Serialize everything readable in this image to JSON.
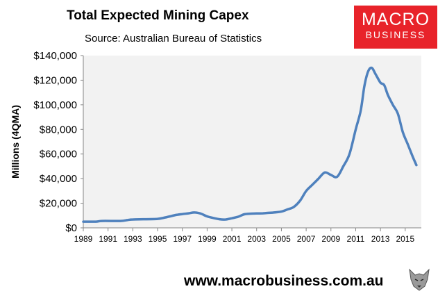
{
  "header": {
    "title": "Total Expected Mining Capex",
    "subtitle": "Source: Australian Bureau of Statistics"
  },
  "logo": {
    "line1": "MACRO",
    "line2": "BUSINESS",
    "color": "#e8232a"
  },
  "footer": {
    "url": "www.macrobusiness.com.au",
    "mascot_icon": "wolf-mascot-icon"
  },
  "colors": {
    "series": "#4f81bd",
    "plot_bg": "#f2f2f2",
    "accent": "#e8232a"
  },
  "chart_data": {
    "type": "line",
    "title": "Total Expected Mining Capex",
    "subtitle": "Source: Australian Bureau of Statistics",
    "xlabel": "",
    "ylabel": "Millions (4QMA)",
    "xlim": [
      1989,
      2016.3
    ],
    "ylim": [
      0,
      140000
    ],
    "grid": false,
    "y_ticks": [
      0,
      20000,
      40000,
      60000,
      80000,
      100000,
      120000,
      140000
    ],
    "y_tick_labels": [
      "$0",
      "$20,000",
      "$40,000",
      "$60,000",
      "$80,000",
      "$100,000",
      "$120,000",
      "$140,000"
    ],
    "x_ticks": [
      1989,
      1991,
      1993,
      1995,
      1997,
      1999,
      2001,
      2003,
      2005,
      2007,
      2009,
      2011,
      2013,
      2015
    ],
    "x_tick_labels": [
      "1989",
      "1991",
      "1993",
      "1995",
      "1997",
      "1999",
      "2001",
      "2003",
      "2005",
      "2007",
      "2009",
      "2011",
      "2013",
      "2015"
    ],
    "series": [
      {
        "name": "Total Expected Mining Capex",
        "x": [
          1989.0,
          1990.0,
          1990.5,
          1992.0,
          1992.6,
          1993.0,
          1994.0,
          1995.0,
          1995.5,
          1996.0,
          1996.5,
          1997.0,
          1997.5,
          1998.0,
          1998.5,
          1999.0,
          1999.5,
          2000.0,
          2000.5,
          2001.0,
          2001.5,
          2002.0,
          2002.5,
          2003.0,
          2003.5,
          2004.0,
          2004.5,
          2005.0,
          2005.5,
          2006.0,
          2006.5,
          2007.0,
          2007.5,
          2008.0,
          2008.5,
          2009.0,
          2009.5,
          2010.0,
          2010.5,
          2011.0,
          2011.4,
          2011.7,
          2012.0,
          2012.3,
          2012.6,
          2013.0,
          2013.3,
          2013.6,
          2014.0,
          2014.4,
          2014.8,
          2015.2,
          2015.6,
          2015.9
        ],
        "values": [
          5000,
          5000,
          5600,
          5600,
          6400,
          6800,
          7000,
          7300,
          8200,
          9300,
          10500,
          11200,
          11800,
          12500,
          11500,
          9300,
          8000,
          7000,
          6800,
          7800,
          9000,
          11000,
          11500,
          11700,
          11800,
          12200,
          12600,
          13200,
          15000,
          17000,
          22000,
          30000,
          35000,
          40000,
          45000,
          43000,
          41500,
          50000,
          60000,
          80000,
          95000,
          115000,
          127000,
          130000,
          125000,
          118000,
          116000,
          108000,
          100000,
          93000,
          78000,
          68000,
          58000,
          51000
        ]
      }
    ]
  }
}
